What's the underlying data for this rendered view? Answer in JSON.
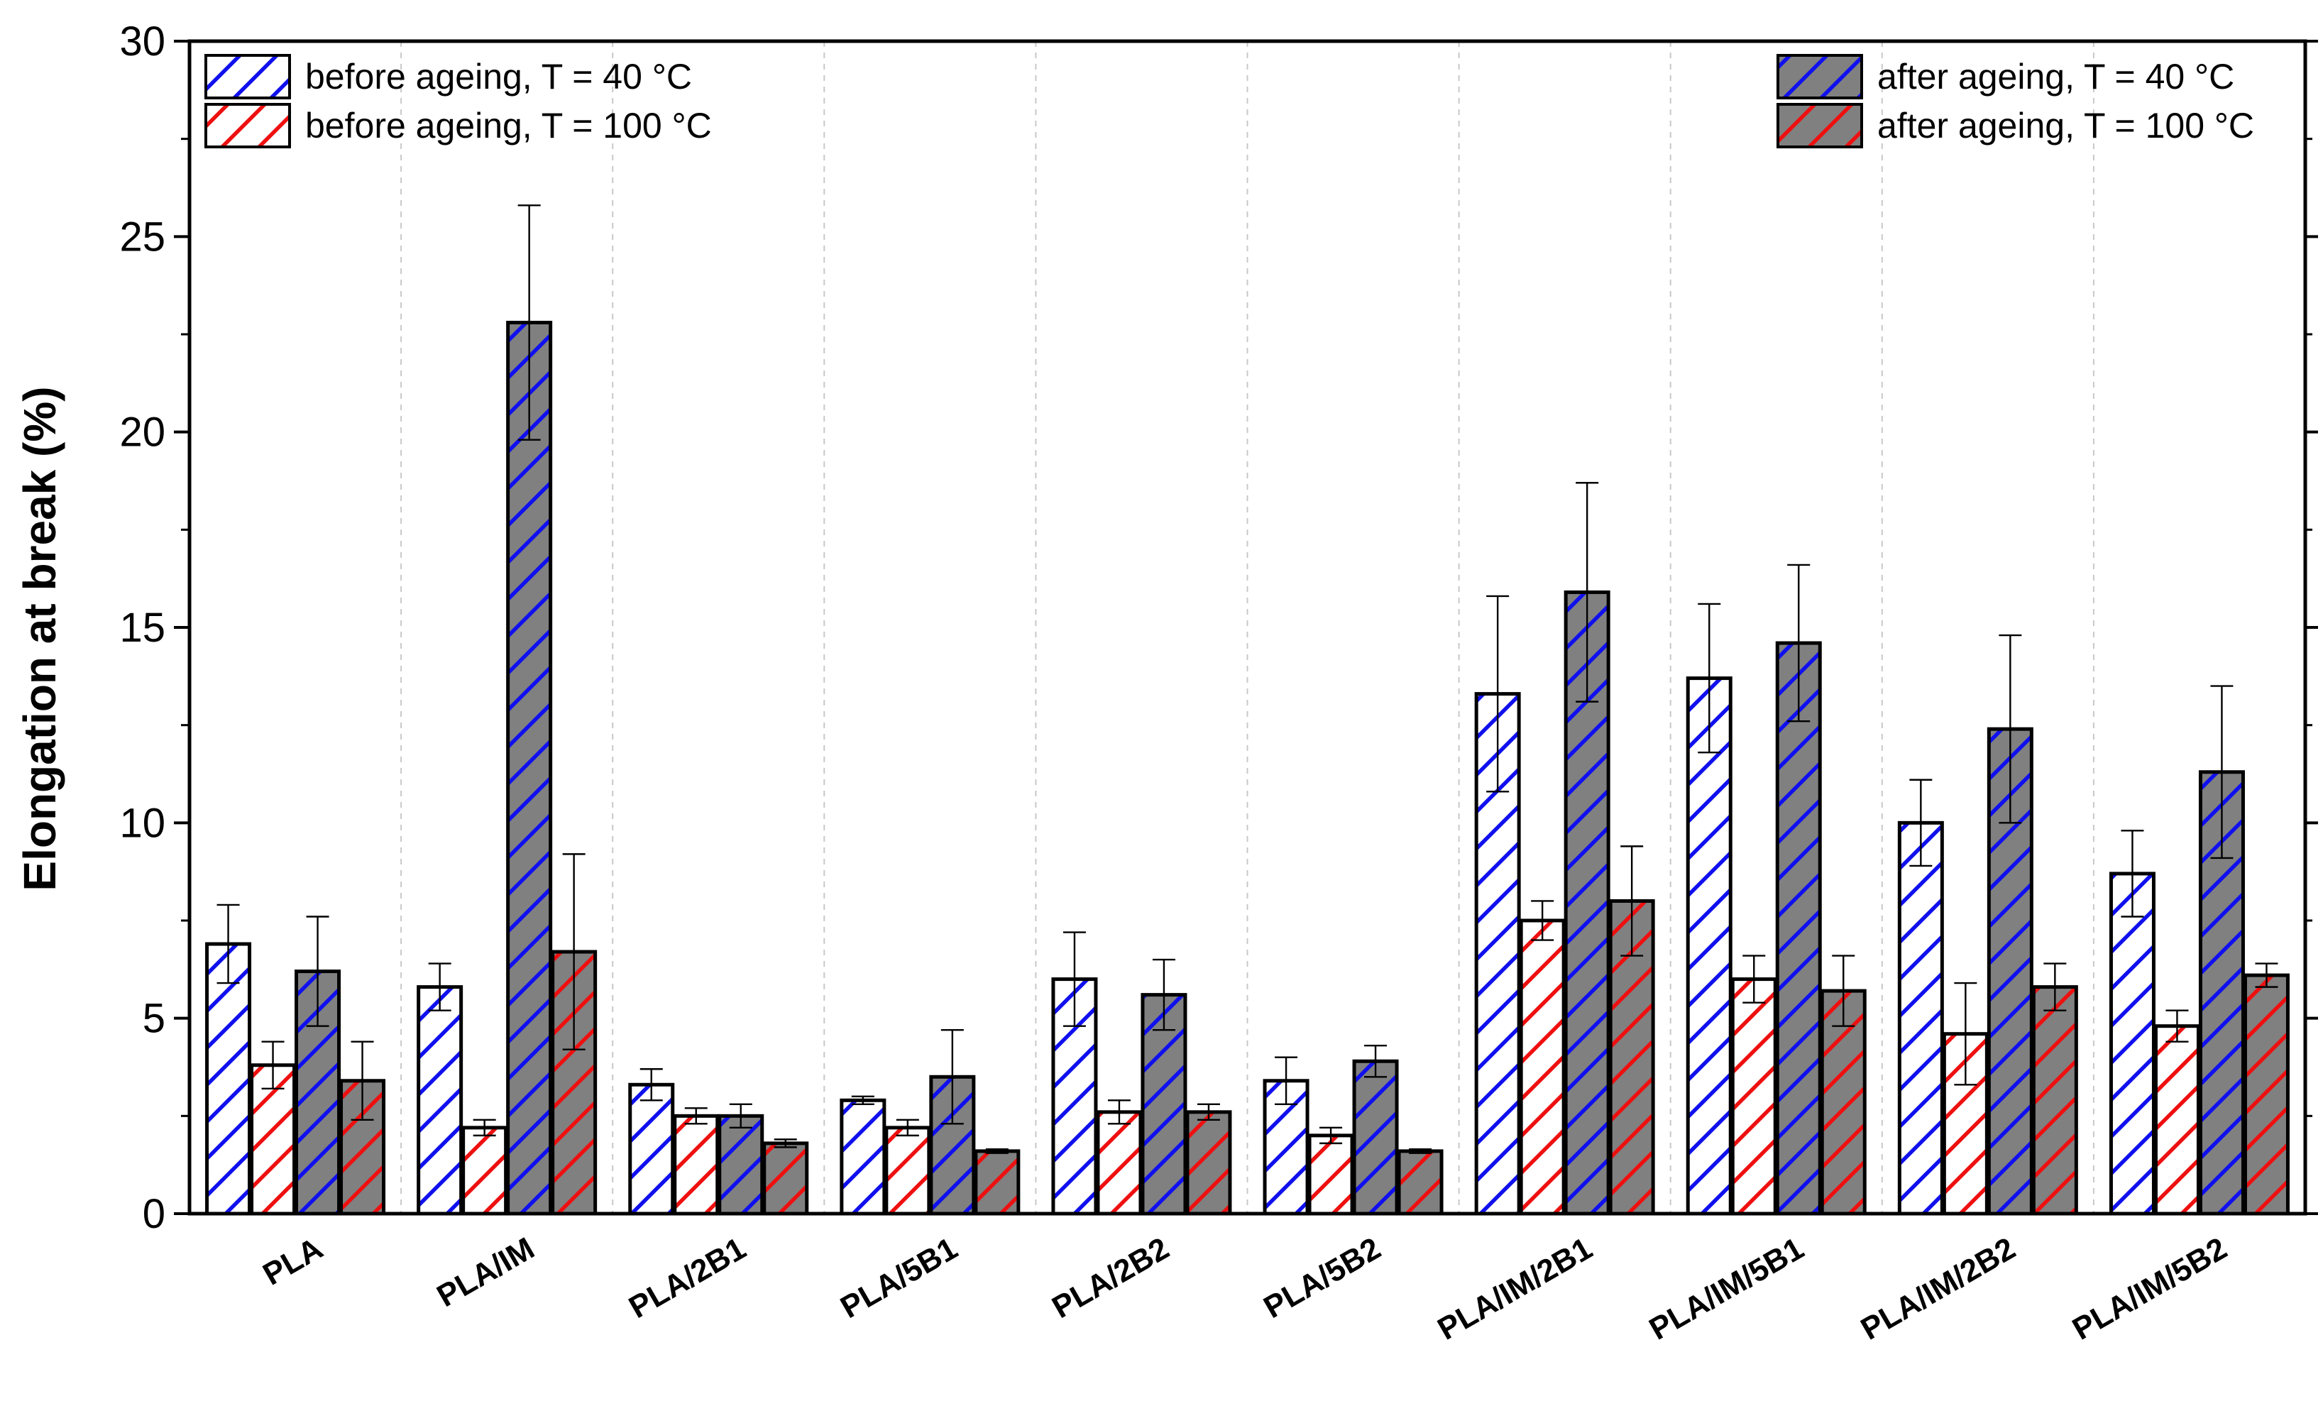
{
  "chart_data": {
    "type": "bar",
    "title": "",
    "xlabel": "",
    "ylabel": "Elongation at break (%)",
    "ylim": [
      0,
      30
    ],
    "yticks": [
      "0",
      "5",
      "10",
      "15",
      "20",
      "25",
      "30"
    ],
    "grid": false,
    "legend_placement": "top-left and top-right",
    "categories": [
      "PLA",
      "PLA/IM",
      "PLA/2B1",
      "PLA/5B1",
      "PLA/2B2",
      "PLA/5B2",
      "PLA/IM/2B1",
      "PLA/IM/5B1",
      "PLA/IM/2B2",
      "PLA/IM/5B2"
    ],
    "series": [
      {
        "name": "before ageing, T = 40 °C",
        "fill": "#ffffff",
        "hatch": "#1010ee",
        "values": [
          6.9,
          5.8,
          3.3,
          2.9,
          6.0,
          3.4,
          13.3,
          13.7,
          10.0,
          8.7
        ],
        "errors": [
          1.0,
          0.6,
          0.4,
          0.1,
          1.2,
          0.6,
          2.5,
          1.9,
          1.1,
          1.1
        ]
      },
      {
        "name": "before ageing, T = 100 °C",
        "fill": "#ffffff",
        "hatch": "#ee1010",
        "values": [
          3.8,
          2.2,
          2.5,
          2.2,
          2.6,
          2.0,
          7.5,
          6.0,
          4.6,
          4.8
        ],
        "errors": [
          0.6,
          0.2,
          0.2,
          0.2,
          0.3,
          0.2,
          0.5,
          0.6,
          1.3,
          0.4
        ]
      },
      {
        "name": "after ageing, T = 40 °C",
        "fill": "#808080",
        "hatch": "#1010ee",
        "values": [
          6.2,
          22.8,
          2.5,
          3.5,
          5.6,
          3.9,
          15.9,
          14.6,
          12.4,
          11.3
        ],
        "errors": [
          1.4,
          3.0,
          0.3,
          1.2,
          0.9,
          0.4,
          2.8,
          2.0,
          2.4,
          2.2
        ]
      },
      {
        "name": "after ageing, T = 100 °C",
        "fill": "#808080",
        "hatch": "#ee1010",
        "values": [
          3.4,
          6.7,
          1.8,
          1.6,
          2.6,
          1.6,
          8.0,
          5.7,
          5.8,
          6.1
        ],
        "errors": [
          1.0,
          2.5,
          0.1,
          0.05,
          0.2,
          0.05,
          1.4,
          0.9,
          0.6,
          0.3
        ]
      }
    ]
  }
}
